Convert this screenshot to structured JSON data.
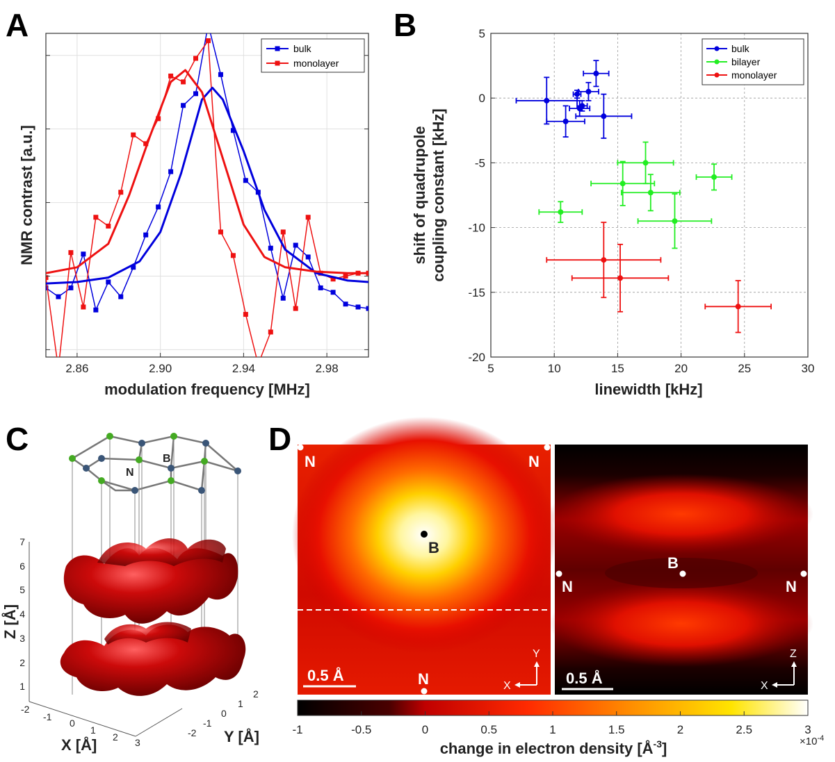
{
  "panels": {
    "a": "A",
    "b": "B",
    "c": "C",
    "d": "D"
  },
  "chart_data": [
    {
      "panel": "A",
      "type": "line",
      "xlabel": "modulation frequency [MHz]",
      "ylabel": "NMR contrast [a.u.]",
      "xlim": [
        2.845,
        3.0
      ],
      "ylim": [
        -0.55,
        1.65
      ],
      "xticks": [
        "2.86",
        "2.90",
        "2.94",
        "2.98"
      ],
      "grid": true,
      "legend_position": "top-right",
      "series": [
        {
          "name": "bulk",
          "color": "#0000dd",
          "x": [
            2.845,
            2.851,
            2.857,
            2.863,
            2.869,
            2.875,
            2.881,
            2.887,
            2.893,
            2.899,
            2.905,
            2.911,
            2.917,
            2.923,
            2.929,
            2.935,
            2.941,
            2.947,
            2.953,
            2.959,
            2.965,
            2.971,
            2.977,
            2.983,
            2.989,
            2.995,
            3.0
          ],
          "y": [
            -0.08,
            -0.14,
            -0.08,
            0.15,
            -0.23,
            -0.04,
            -0.14,
            0.06,
            0.28,
            0.47,
            0.71,
            1.16,
            1.24,
            1.71,
            1.37,
            0.99,
            0.65,
            0.57,
            0.19,
            -0.15,
            0.21,
            0.13,
            -0.08,
            -0.11,
            -0.19,
            -0.21,
            -0.22
          ]
        },
        {
          "name": "monolayer",
          "color": "#ee1111",
          "x": [
            2.845,
            2.851,
            2.857,
            2.863,
            2.869,
            2.875,
            2.881,
            2.887,
            2.893,
            2.899,
            2.905,
            2.911,
            2.917,
            2.923,
            2.929,
            2.935,
            2.941,
            2.947,
            2.953,
            2.959,
            2.965,
            2.971,
            2.977,
            2.983,
            2.989,
            2.995,
            3.0
          ],
          "y": [
            -0.01,
            -0.63,
            0.16,
            -0.21,
            0.4,
            0.34,
            0.57,
            0.96,
            0.9,
            1.07,
            1.36,
            1.32,
            1.48,
            1.6,
            0.3,
            0.14,
            -0.26,
            -0.6,
            -0.38,
            0.3,
            -0.22,
            0.4,
            0.02,
            -0.02,
            0.0,
            0.02,
            0.02
          ]
        },
        {
          "name": "bulk fit",
          "color": "#0000dd",
          "x": [
            2.845,
            2.86,
            2.875,
            2.89,
            2.9,
            2.91,
            2.92,
            2.925,
            2.93,
            2.94,
            2.95,
            2.96,
            2.975,
            2.99,
            3.0
          ],
          "y": [
            -0.05,
            -0.04,
            -0.01,
            0.1,
            0.3,
            0.7,
            1.2,
            1.28,
            1.2,
            0.85,
            0.45,
            0.18,
            0.02,
            -0.03,
            -0.04
          ]
        },
        {
          "name": "monolayer fit",
          "color": "#ee1111",
          "x": [
            2.845,
            2.86,
            2.875,
            2.885,
            2.895,
            2.905,
            2.912,
            2.92,
            2.93,
            2.94,
            2.95,
            2.96,
            2.975,
            2.99,
            3.0
          ],
          "y": [
            0.02,
            0.06,
            0.22,
            0.55,
            0.95,
            1.32,
            1.4,
            1.25,
            0.8,
            0.35,
            0.13,
            0.06,
            0.03,
            0.02,
            0.02
          ]
        }
      ]
    },
    {
      "panel": "B",
      "type": "scatter",
      "xlabel": "linewidth [kHz]",
      "ylabel_lines": [
        "shift of quadrupole",
        "coupling constant [kHz]"
      ],
      "xlim": [
        5,
        30
      ],
      "ylim": [
        -20,
        5
      ],
      "xticks": [
        "5",
        "10",
        "15",
        "20",
        "25",
        "30"
      ],
      "yticks": [
        "5",
        "0",
        "-5",
        "-10",
        "-15",
        "-20"
      ],
      "grid": true,
      "legend_position": "top-right",
      "series": [
        {
          "name": "bulk",
          "color": "#0000dd",
          "points": [
            {
              "x": 9.4,
              "y": -0.2,
              "xerr": 2.4,
              "yerr": 1.8
            },
            {
              "x": 10.9,
              "y": -1.8,
              "xerr": 1.5,
              "yerr": 1.2
            },
            {
              "x": 11.8,
              "y": 0.3,
              "xerr": 0.3,
              "yerr": 0.3
            },
            {
              "x": 12.0,
              "y": -0.8,
              "xerr": 0.8,
              "yerr": 0.6
            },
            {
              "x": 12.2,
              "y": -0.6,
              "xerr": 0.4,
              "yerr": 0.4
            },
            {
              "x": 12.7,
              "y": 0.5,
              "xerr": 0.8,
              "yerr": 0.7
            },
            {
              "x": 13.3,
              "y": 1.9,
              "xerr": 1.0,
              "yerr": 1.0
            },
            {
              "x": 13.9,
              "y": -1.4,
              "xerr": 2.2,
              "yerr": 1.7
            }
          ]
        },
        {
          "name": "bilayer",
          "color": "#22ee22",
          "points": [
            {
              "x": 10.5,
              "y": -8.8,
              "xerr": 1.7,
              "yerr": 0.8
            },
            {
              "x": 15.4,
              "y": -6.6,
              "xerr": 2.5,
              "yerr": 1.7
            },
            {
              "x": 17.2,
              "y": -5.0,
              "xerr": 2.2,
              "yerr": 1.6
            },
            {
              "x": 17.6,
              "y": -7.3,
              "xerr": 2.3,
              "yerr": 1.4
            },
            {
              "x": 19.5,
              "y": -9.5,
              "xerr": 2.9,
              "yerr": 2.1
            },
            {
              "x": 22.6,
              "y": -6.1,
              "xerr": 1.4,
              "yerr": 1.0
            }
          ]
        },
        {
          "name": "monolayer",
          "color": "#ee1111",
          "points": [
            {
              "x": 13.9,
              "y": -12.5,
              "xerr": 4.5,
              "yerr": 2.9
            },
            {
              "x": 15.2,
              "y": -13.9,
              "xerr": 3.8,
              "yerr": 2.6
            },
            {
              "x": 24.5,
              "y": -16.1,
              "xerr": 2.6,
              "yerr": 2.0
            }
          ]
        }
      ]
    },
    {
      "panel": "D",
      "type": "heatmap",
      "colorbar_label": "change in electron density [Å",
      "colorbar_label_sup": "-3",
      "colorbar_label_end": "]",
      "colorbar_exponent": "×10",
      "colorbar_exponent_sup": "-4",
      "colorbar_ticks": [
        "-1",
        "-0.5",
        "0",
        "0.5",
        "1",
        "1.5",
        "2",
        "2.5",
        "3"
      ],
      "clim": [
        -1,
        3
      ]
    }
  ],
  "panel_c": {
    "zlabel": "Z [Å]",
    "xlabel": "X [Å]",
    "ylabel": "Y [Å]",
    "zticks": [
      "1",
      "2",
      "3",
      "4",
      "5",
      "6",
      "7"
    ],
    "xticks": [
      "-2",
      "-1",
      "0",
      "1",
      "2",
      "3"
    ],
    "yticks": [
      "-2",
      "-1",
      "0",
      "1",
      "2"
    ],
    "atom_n": "N",
    "atom_b": "B"
  },
  "panel_d": {
    "left_labels": {
      "n_tl": "N",
      "n_tr": "N",
      "b": "B",
      "n_bottom": "N"
    },
    "right_labels": {
      "b": "B",
      "n_left": "N",
      "n_right": "N"
    },
    "scalebar": "0.5 Å",
    "axis_left": {
      "v": "Y",
      "h": "X"
    },
    "axis_right": {
      "v": "Z",
      "h": "X"
    }
  }
}
